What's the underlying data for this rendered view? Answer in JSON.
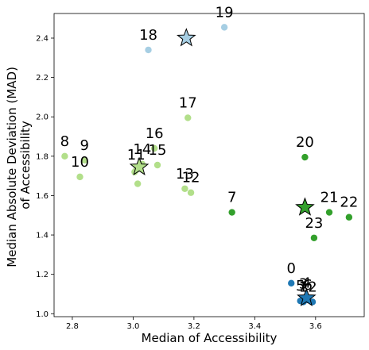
{
  "chart_data": {
    "type": "scatter",
    "xlabel": "Median of Accessibility",
    "ylabel_lines": [
      "Median Absolute Deviation (MAD)",
      "of Accessibility"
    ],
    "xlim": [
      2.74,
      3.76
    ],
    "ylim": [
      0.985,
      2.525
    ],
    "xticks": [
      {
        "value": 2.8,
        "label": "2.8"
      },
      {
        "value": 3.0,
        "label": "3.0"
      },
      {
        "value": 3.2,
        "label": "3.2"
      },
      {
        "value": 3.4,
        "label": "3.4"
      },
      {
        "value": 3.6,
        "label": "3.6"
      }
    ],
    "yticks": [
      {
        "value": 1.0,
        "label": "1.0"
      },
      {
        "value": 1.2,
        "label": "1.2"
      },
      {
        "value": 1.4,
        "label": "1.4"
      },
      {
        "value": 1.6,
        "label": "1.6"
      },
      {
        "value": 1.8,
        "label": "1.8"
      },
      {
        "value": 2.0,
        "label": "2.0"
      },
      {
        "value": 2.2,
        "label": "2.2"
      },
      {
        "value": 2.4,
        "label": "2.4"
      }
    ],
    "grid": false,
    "colors": {
      "dark_blue": "#1f78b4",
      "light_blue": "#a6cee3",
      "dark_green": "#33a02c",
      "light_green": "#b2df8a"
    },
    "points": [
      {
        "label": "0",
        "x": 3.52,
        "y": 1.155,
        "color": "dark_blue"
      },
      {
        "label": "1",
        "x": 3.56,
        "y": 1.06,
        "color": "dark_blue"
      },
      {
        "label": "2",
        "x": 3.59,
        "y": 1.06,
        "color": "dark_blue"
      },
      {
        "label": "3",
        "x": 3.56,
        "y": 1.075,
        "color": "dark_blue"
      },
      {
        "label": "4",
        "x": 3.57,
        "y": 1.08,
        "color": "dark_blue"
      },
      {
        "label": "5",
        "x": 3.55,
        "y": 1.065,
        "color": "dark_blue"
      },
      {
        "label": "6",
        "x": 3.575,
        "y": 1.07,
        "color": "dark_blue"
      },
      {
        "label": "7",
        "x": 3.325,
        "y": 1.515,
        "color": "dark_green"
      },
      {
        "label": "8",
        "x": 2.775,
        "y": 1.8,
        "color": "light_green"
      },
      {
        "label": "9",
        "x": 2.84,
        "y": 1.78,
        "color": "light_green"
      },
      {
        "label": "10",
        "x": 2.825,
        "y": 1.695,
        "color": "light_green"
      },
      {
        "label": "11",
        "x": 3.01,
        "y": 1.73,
        "color": "light_green"
      },
      {
        "label": "12",
        "x": 3.19,
        "y": 1.615,
        "color": "light_green"
      },
      {
        "label": "13",
        "x": 3.17,
        "y": 1.635,
        "color": "light_green"
      },
      {
        "label": "14",
        "x": 3.03,
        "y": 1.76,
        "color": "light_green"
      },
      {
        "label": "15",
        "x": 3.08,
        "y": 1.755,
        "color": "light_green"
      },
      {
        "label": "16",
        "x": 3.07,
        "y": 1.84,
        "color": "light_green"
      },
      {
        "label": "17",
        "x": 3.18,
        "y": 1.995,
        "color": "light_green"
      },
      {
        "label": "18",
        "x": 3.05,
        "y": 2.34,
        "color": "light_blue"
      },
      {
        "label": "19",
        "x": 3.3,
        "y": 2.455,
        "color": "light_blue"
      },
      {
        "label": "20",
        "x": 3.565,
        "y": 1.795,
        "color": "dark_green"
      },
      {
        "label": "21",
        "x": 3.645,
        "y": 1.515,
        "color": "dark_green"
      },
      {
        "label": "22",
        "x": 3.71,
        "y": 1.49,
        "color": "dark_green"
      },
      {
        "label": "23",
        "x": 3.595,
        "y": 1.385,
        "color": "dark_green"
      },
      {
        "label": "",
        "x": 3.015,
        "y": 1.66,
        "color": "light_green"
      },
      {
        "label": "",
        "x": 3.005,
        "y": 1.72,
        "color": "light_green"
      }
    ],
    "centroids": [
      {
        "x": 3.175,
        "y": 2.4,
        "color": "light_blue"
      },
      {
        "x": 3.57,
        "y": 1.08,
        "color": "dark_blue"
      },
      {
        "x": 3.565,
        "y": 1.54,
        "color": "dark_green"
      },
      {
        "x": 3.02,
        "y": 1.745,
        "color": "light_green"
      }
    ]
  }
}
